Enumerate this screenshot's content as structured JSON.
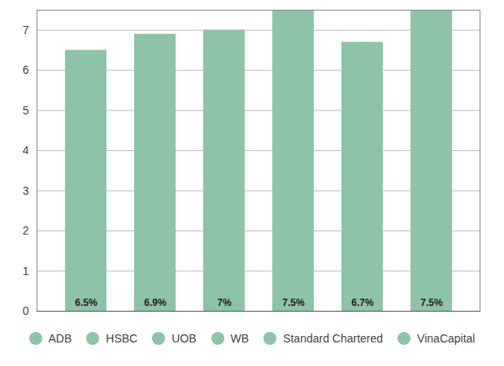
{
  "chart_data": {
    "type": "bar",
    "categories": [
      "ADB",
      "HSBC",
      "UOB",
      "WB",
      "Standard Chartered",
      "VinaCapital"
    ],
    "values": [
      6.5,
      6.9,
      7,
      7.5,
      6.7,
      7.5
    ],
    "value_labels": [
      "6.5%",
      "6.9%",
      "7%",
      "7.5%",
      "6.7%",
      "7.5%"
    ],
    "colors": [
      "#8dc3a7",
      "#8dc3a7",
      "#8dc3a7",
      "#8dc3a7",
      "#8dc3a7",
      "#8dc3a7"
    ],
    "ylim": [
      0,
      7.5
    ],
    "yticks": [
      0,
      1,
      2,
      3,
      4,
      5,
      6,
      7
    ],
    "grid": true,
    "data_labels": true,
    "tick_labels": "y",
    "legend": "bottom"
  }
}
